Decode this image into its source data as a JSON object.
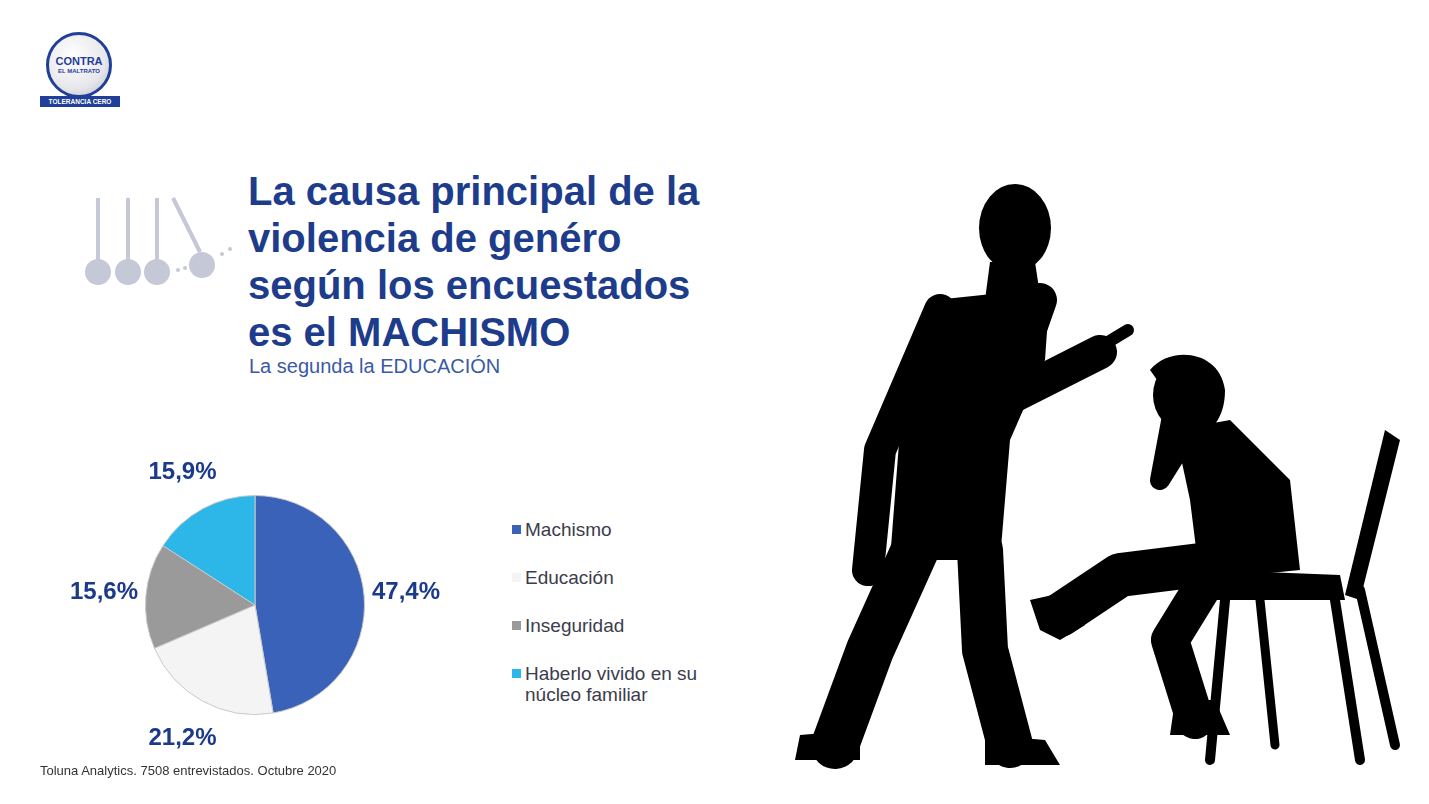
{
  "logo": {
    "text": [
      "CONTRA",
      "EL MALTRATO"
    ],
    "tagline": "TOLERANCIA CERO"
  },
  "chart_data": {
    "type": "pie",
    "title": "La causa principal de la violencia de genéro según los encuestados es el MACHISMO",
    "subtitle": "La segunda la EDUCACIÓN",
    "categories": [
      "Machismo",
      "Educación",
      "Inseguridad",
      "Haberlo vivido en su núcleo familiar"
    ],
    "values": [
      47.4,
      21.2,
      15.6,
      15.9
    ],
    "value_labels": [
      "47,4%",
      "21,2%",
      "15,6%",
      "15,9%"
    ],
    "colors": [
      "#3a62b8",
      "#f4f4f4",
      "#9a9a9a",
      "#2db6e8"
    ],
    "data_labels": true,
    "legend": "right"
  },
  "source": "Toluna Analytics. 7508 entrevistados. Octubre 2020"
}
